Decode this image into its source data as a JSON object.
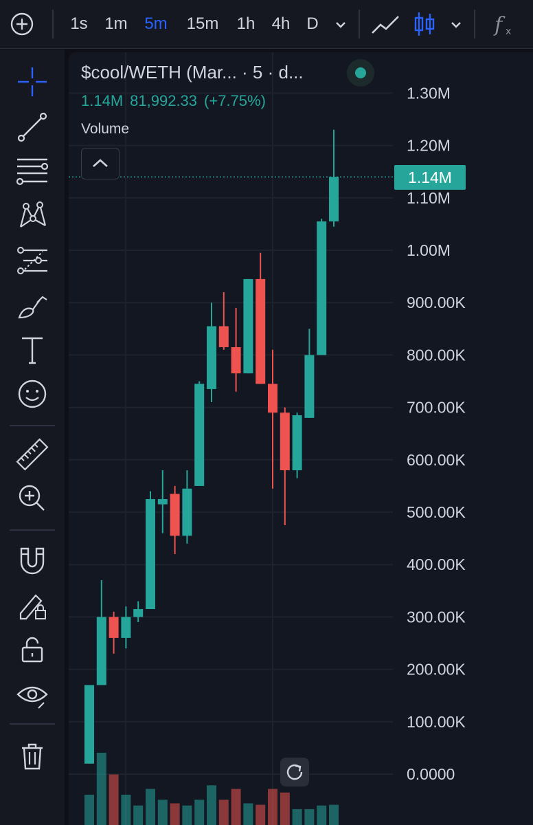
{
  "toolbar": {
    "intervals": [
      "1s",
      "1m",
      "5m",
      "15m",
      "1h",
      "4h",
      "D"
    ],
    "active_interval": "5m",
    "icons": [
      "add-symbol-icon",
      "chevron-down-icon",
      "line-chart-icon",
      "candles-icon",
      "chevron-down-icon",
      "indicators-fx-icon"
    ]
  },
  "sidebar": {
    "tools": [
      "crosshair-icon",
      "trend-line-icon",
      "fib-retracement-icon",
      "pattern-icon",
      "prediction-icon",
      "brush-icon",
      "text-icon",
      "emoji-icon",
      "ruler-icon",
      "zoom-in-icon",
      "magnet-icon",
      "lock-drawing-icon",
      "unlock-icon",
      "eye-icon",
      "trash-icon"
    ]
  },
  "legend": {
    "title": "$cool/WETH (Mar... · 5 · d...",
    "last_value": "1.14M",
    "change": "81,992.33",
    "change_pct": "(+7.75%)",
    "volume_label": "Volume"
  },
  "colors": {
    "up": "#26a69a",
    "down": "#ef5350",
    "background": "#131722",
    "active": "#2962ff"
  },
  "chart_data": {
    "type": "candlestick",
    "y_ticks": [
      "1.30M",
      "1.20M",
      "1.10M",
      "1.00M",
      "900.00K",
      "800.00K",
      "700.00K",
      "600.00K",
      "500.00K",
      "400.00K",
      "300.00K",
      "200.00K",
      "100.00K",
      "0.0000"
    ],
    "ylim": [
      0,
      1300000
    ],
    "current_price_label": "1.14M",
    "candles": [
      {
        "o": 20000,
        "h": 170000,
        "l": 20000,
        "c": 170000
      },
      {
        "o": 170000,
        "h": 370000,
        "l": 170000,
        "c": 300000
      },
      {
        "o": 300000,
        "h": 310000,
        "l": 230000,
        "c": 260000
      },
      {
        "o": 260000,
        "h": 320000,
        "l": 240000,
        "c": 300000
      },
      {
        "o": 300000,
        "h": 330000,
        "l": 290000,
        "c": 315000
      },
      {
        "o": 315000,
        "h": 540000,
        "l": 315000,
        "c": 525000
      },
      {
        "o": 515000,
        "h": 580000,
        "l": 460000,
        "c": 525000
      },
      {
        "o": 535000,
        "h": 550000,
        "l": 420000,
        "c": 455000
      },
      {
        "o": 455000,
        "h": 580000,
        "l": 440000,
        "c": 545000
      },
      {
        "o": 550000,
        "h": 750000,
        "l": 550000,
        "c": 745000
      },
      {
        "o": 735000,
        "h": 900000,
        "l": 710000,
        "c": 855000
      },
      {
        "o": 855000,
        "h": 920000,
        "l": 810000,
        "c": 815000
      },
      {
        "o": 815000,
        "h": 890000,
        "l": 730000,
        "c": 765000
      },
      {
        "o": 765000,
        "h": 945000,
        "l": 765000,
        "c": 945000
      },
      {
        "o": 945000,
        "h": 995000,
        "l": 745000,
        "c": 745000
      },
      {
        "o": 745000,
        "h": 810000,
        "l": 545000,
        "c": 690000
      },
      {
        "o": 690000,
        "h": 700000,
        "l": 475000,
        "c": 580000
      },
      {
        "o": 580000,
        "h": 690000,
        "l": 565000,
        "c": 685000
      },
      {
        "o": 680000,
        "h": 850000,
        "l": 680000,
        "c": 800000
      },
      {
        "o": 800000,
        "h": 1060000,
        "l": 800000,
        "c": 1055000
      },
      {
        "o": 1055000,
        "h": 1230000,
        "l": 1045000,
        "c": 1140000
      }
    ],
    "volumes": [
      0.42,
      1.0,
      0.7,
      0.42,
      0.27,
      0.5,
      0.35,
      0.3,
      0.27,
      0.35,
      0.55,
      0.35,
      0.5,
      0.3,
      0.28,
      0.5,
      0.45,
      0.22,
      0.22,
      0.27,
      0.28
    ]
  }
}
